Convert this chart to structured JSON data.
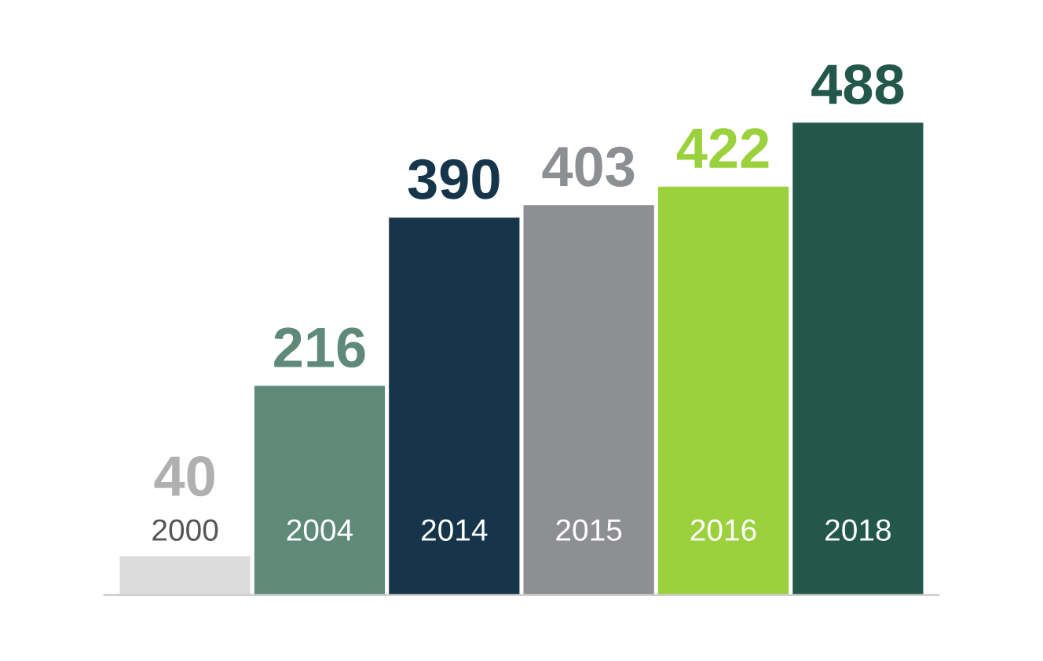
{
  "chart_data": {
    "type": "bar",
    "categories": [
      "2000",
      "2004",
      "2014",
      "2015",
      "2016",
      "2018"
    ],
    "values": [
      40,
      216,
      390,
      403,
      422,
      488
    ],
    "colors": [
      "#dcdcdc",
      "#5f8a7a",
      "#17354a",
      "#8e8f93",
      "#9ad13c",
      "#22574a"
    ],
    "data_labels": true,
    "grid": false,
    "legend": false
  }
}
